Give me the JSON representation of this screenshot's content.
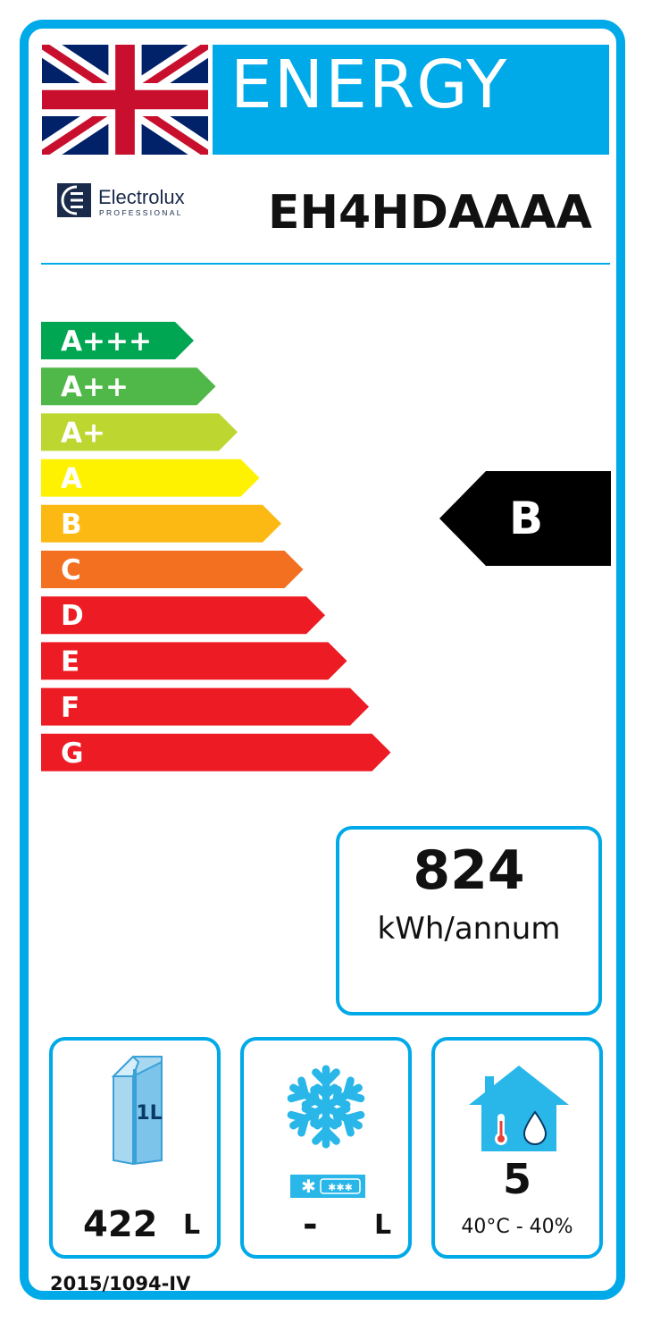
{
  "header": {
    "energy_title": "ENERGY",
    "flag_icon": "uk-flag-icon",
    "brand_name": "Electrolux",
    "brand_sub": "PROFESSIONAL",
    "model": "EH4HDAAAA"
  },
  "scale": {
    "classes": [
      {
        "label": "A+++",
        "color": "#00a651"
      },
      {
        "label": "A++",
        "color": "#50b848"
      },
      {
        "label": "A+",
        "color": "#bed630"
      },
      {
        "label": "A",
        "color": "#fff200"
      },
      {
        "label": "B",
        "color": "#fdb913"
      },
      {
        "label": "C",
        "color": "#f37021"
      },
      {
        "label": "D",
        "color": "#ed1c24"
      },
      {
        "label": "E",
        "color": "#ed1c24"
      },
      {
        "label": "F",
        "color": "#ed1c24"
      },
      {
        "label": "G",
        "color": "#ed1c24"
      }
    ]
  },
  "rating": {
    "label": "B",
    "color": "#000000"
  },
  "consumption": {
    "value": "824",
    "unit": "kWh/annum"
  },
  "storage": {
    "volume_icon": "milk-carton-icon",
    "carton_label": "1L",
    "volume_value": "422",
    "volume_unit": "L"
  },
  "freezer": {
    "icon": "snowflake-icon",
    "value": "-",
    "unit": "L"
  },
  "climate": {
    "icon": "house-climate-icon",
    "class_value": "5",
    "range": "40°C - 40%"
  },
  "regulation": "2015/1094-IV",
  "colors": {
    "accent": "#00a9e8"
  }
}
